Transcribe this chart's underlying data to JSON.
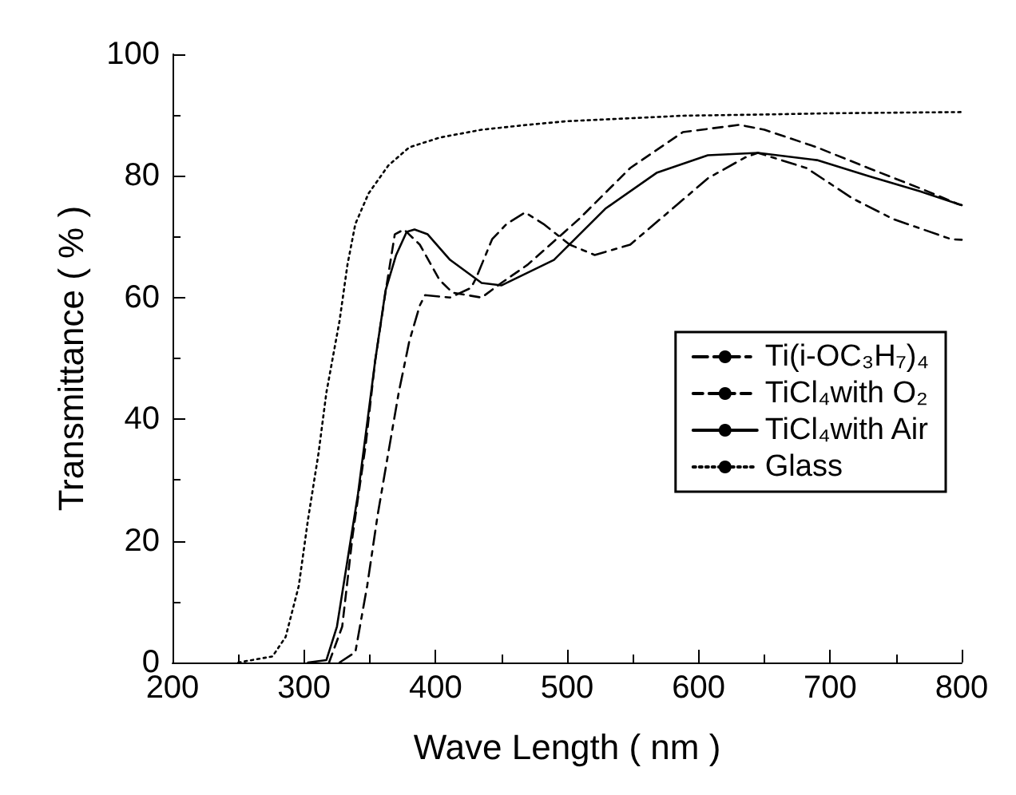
{
  "chart_data": {
    "type": "line",
    "xlabel": "Wave Length ( nm )",
    "ylabel": "Transmittance ( % )",
    "xlim": [
      200,
      800
    ],
    "xticks": [
      200,
      300,
      400,
      500,
      600,
      700,
      800
    ],
    "ylim": [
      0,
      100
    ],
    "yticks": [
      0,
      20,
      40,
      60,
      80,
      100
    ],
    "grid": false,
    "legend": "right",
    "marker": "none",
    "series": [
      {
        "name": "Ti(i-OC₃H₇)₄",
        "color": "#000000",
        "line_style": "dashdot",
        "x": [
          327,
          339,
          348,
          356,
          364,
          372,
          380,
          388,
          392,
          411,
          427,
          431,
          443,
          454,
          468,
          482,
          502,
          521,
          548,
          580,
          607,
          635,
          645,
          682,
          717,
          748,
          792,
          800
        ],
        "values": [
          0,
          1.7,
          12.6,
          24.3,
          34.4,
          44.4,
          52.8,
          58.7,
          60.4,
          60,
          61.6,
          63.3,
          69.6,
          72.1,
          74,
          72.1,
          68.7,
          67,
          68.7,
          74.6,
          79.6,
          83,
          83.8,
          81.3,
          76.3,
          72.9,
          69.6,
          69.5
        ]
      },
      {
        "name": "TiCl₄with O₂",
        "color": "#000000",
        "line_style": "dashed",
        "x": [
          319,
          329,
          337,
          347,
          354,
          362,
          369,
          376,
          388,
          403,
          413,
          435,
          450,
          470,
          509,
          548,
          588,
          631,
          650,
          690,
          729,
          768,
          797,
          800
        ],
        "values": [
          0,
          5.9,
          21,
          36,
          49.5,
          61,
          70.4,
          71.2,
          68.7,
          62.9,
          60.8,
          60,
          62.4,
          65.4,
          72.9,
          81.3,
          87.2,
          88.4,
          87.6,
          84.7,
          81.3,
          78,
          75.4,
          75.2
        ]
      },
      {
        "name": "TiCl₄with Air",
        "color": "#000000",
        "line_style": "solid",
        "x": [
          303,
          317,
          325,
          333,
          341,
          347,
          354,
          362,
          370,
          378,
          384,
          394,
          411,
          435,
          450,
          490,
          529,
          568,
          607,
          645,
          690,
          729,
          768,
          797,
          800
        ],
        "values": [
          0,
          0.4,
          5.9,
          16.8,
          27.7,
          37.7,
          49.5,
          61.2,
          67,
          70.8,
          71.2,
          70.4,
          66.2,
          62.4,
          62,
          66.2,
          74.6,
          80.5,
          83.4,
          83.8,
          82.6,
          80,
          77.5,
          75.4,
          75.2
        ]
      },
      {
        "name": "Glass",
        "color": "#000000",
        "line_style": "dotted",
        "x": [
          250,
          276,
          286,
          296,
          303,
          311,
          317,
          327,
          333,
          339,
          349,
          364,
          380,
          403,
          435,
          470,
          500,
          550,
          588,
          650,
          700,
          750,
          800
        ],
        "values": [
          0,
          1,
          4.2,
          12.6,
          23.5,
          34.4,
          44.4,
          56.2,
          65.4,
          72.1,
          77.1,
          81.7,
          84.7,
          86.3,
          87.6,
          88.4,
          89,
          89.5,
          89.9,
          90.1,
          90.3,
          90.4,
          90.5
        ]
      }
    ]
  }
}
